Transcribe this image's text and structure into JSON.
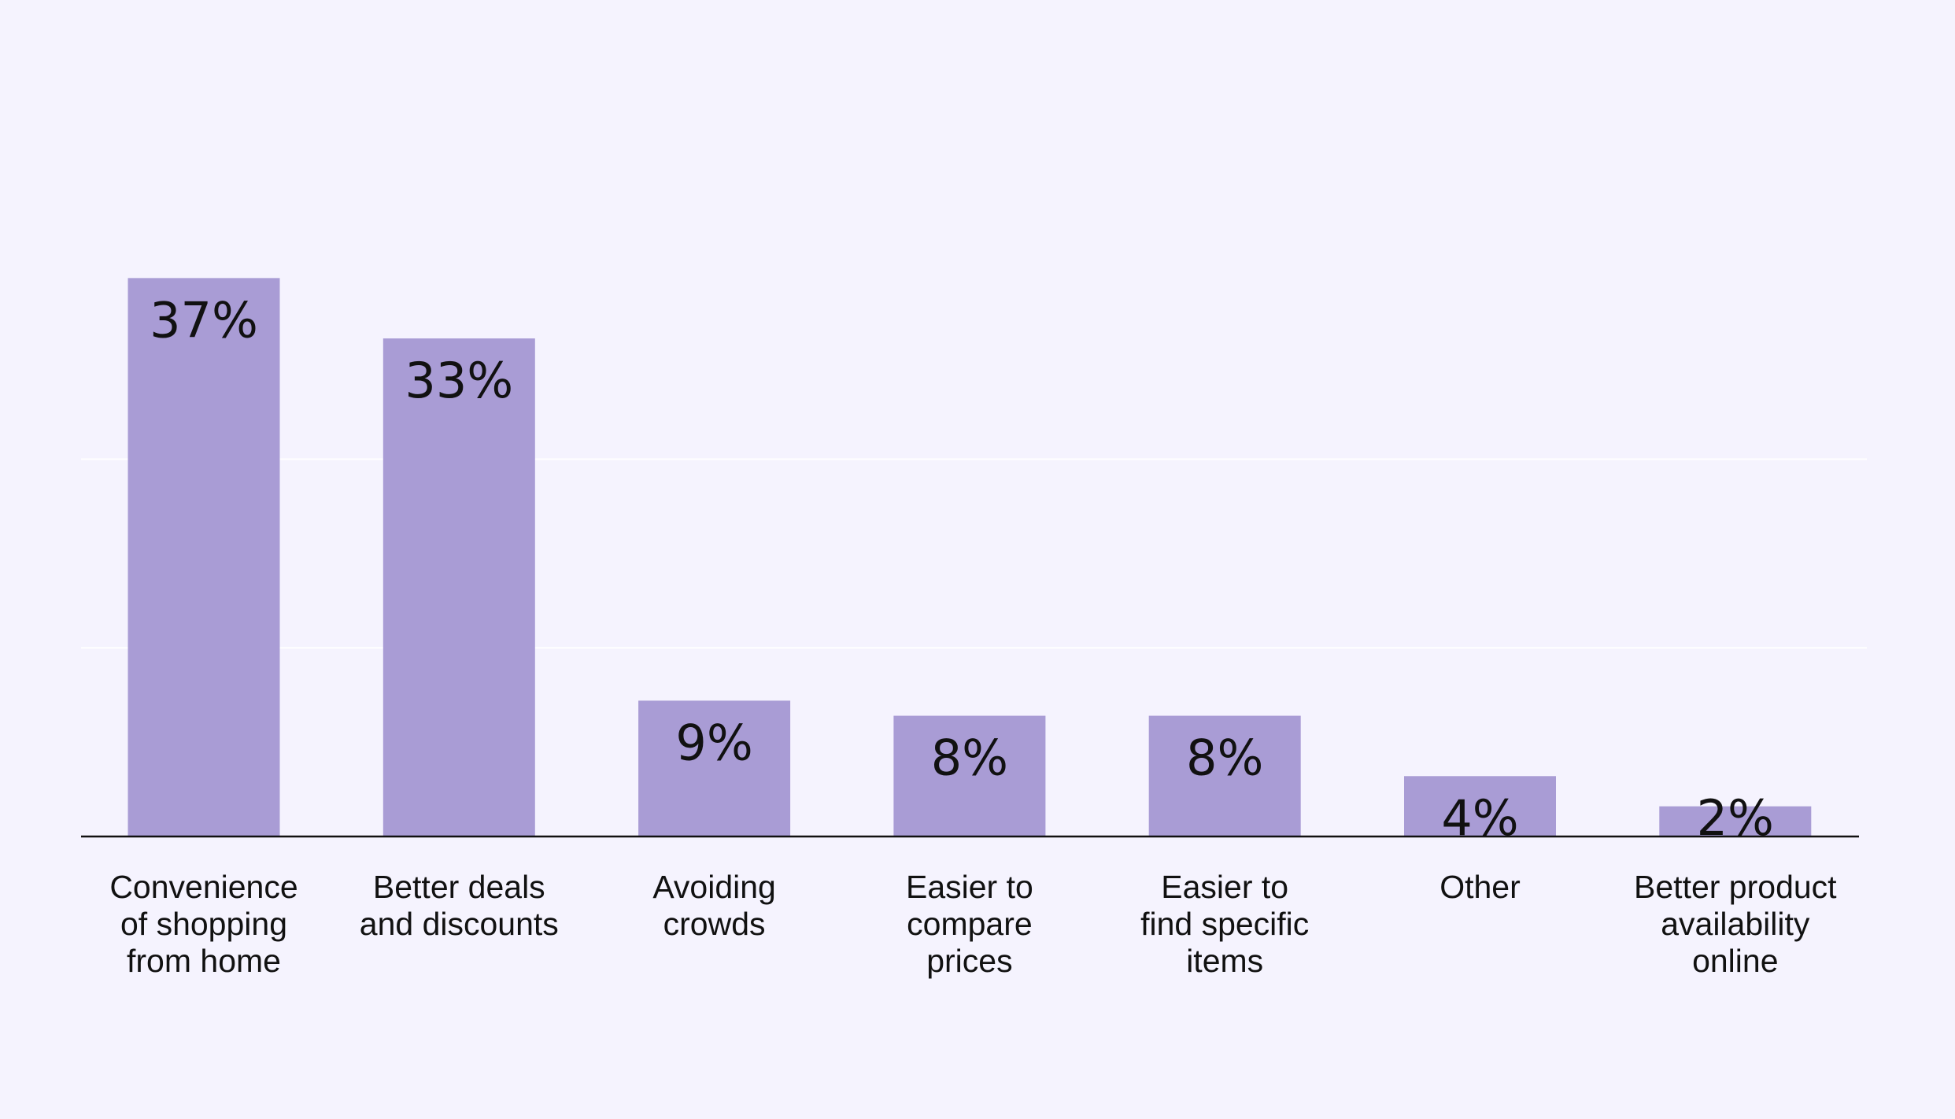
{
  "chart_data": {
    "type": "bar",
    "title": "",
    "xlabel": "",
    "ylabel": "",
    "ylim": [
      0,
      40
    ],
    "grid": true,
    "legend": "none",
    "categories": [
      [
        "Convenience",
        "of shopping",
        "from home"
      ],
      [
        "Better deals",
        "and discounts"
      ],
      [
        "Avoiding",
        "crowds"
      ],
      [
        "Easier to",
        "compare",
        "prices"
      ],
      [
        "Easier to",
        "find specific",
        "items"
      ],
      [
        "Other"
      ],
      [
        "Better product",
        "availability",
        "online"
      ]
    ],
    "values": [
      37,
      33,
      9,
      8,
      8,
      4,
      2
    ],
    "data_labels": [
      "37%",
      "33%",
      "9%",
      "8%",
      "8%",
      "4%",
      "2%"
    ],
    "colors": {
      "background": "#f5f3fe",
      "bar": "#a99cd5",
      "gridline": "#ffffff",
      "axis": "#111111",
      "text": "#111111"
    }
  }
}
